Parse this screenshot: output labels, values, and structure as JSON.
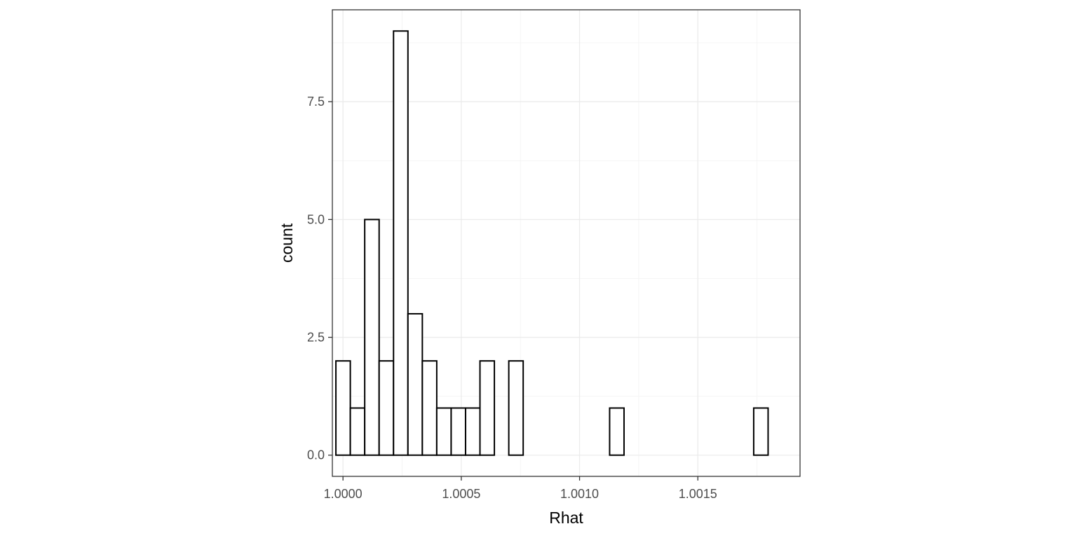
{
  "chart_data": {
    "type": "bar",
    "subtype": "histogram",
    "title": "",
    "xlabel": "Rhat",
    "ylabel": "count",
    "bin_width": 6.09e-05,
    "bin_start": 0.99997,
    "values": [
      2,
      1,
      5,
      2,
      9,
      3,
      2,
      1,
      1,
      1,
      2,
      0,
      2,
      0,
      0,
      0,
      0,
      0,
      0,
      1,
      0,
      0,
      0,
      0,
      0,
      0,
      0,
      0,
      0,
      1
    ],
    "xlim": [
      0.999955,
      1.001932
    ],
    "ylim": [
      -0.45,
      9.45
    ],
    "x_ticks": [
      1.0,
      1.0005,
      1.001,
      1.0015
    ],
    "x_tick_labels": [
      "1.0000",
      "1.0005",
      "1.0010",
      "1.0015"
    ],
    "y_ticks": [
      0,
      2.5,
      5,
      7.5
    ],
    "y_tick_labels": [
      "0.0",
      "2.5",
      "5.0",
      "7.5"
    ],
    "grid": true,
    "theme": "bw",
    "colors": {
      "bar_fill": "#ffffff",
      "bar_stroke": "#000000",
      "grid_major": "#ebebeb",
      "grid_minor": "#f4f4f4",
      "panel_border": "#333333",
      "tick_text": "#4d4d4d"
    }
  }
}
